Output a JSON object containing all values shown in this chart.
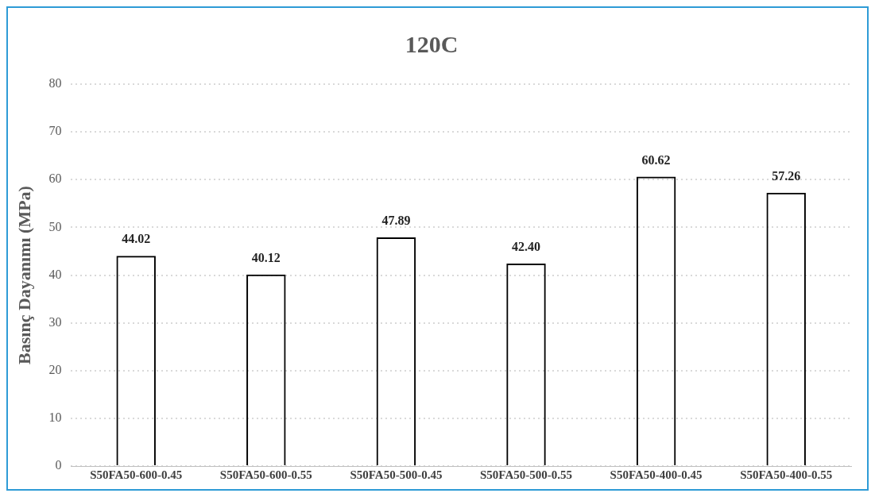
{
  "chart_data": {
    "type": "bar",
    "title": "120C",
    "ylabel": "Basınç Dayanımı (MPa)",
    "categories": [
      "S50FA50-600-0.45",
      "S50FA50-600-0.55",
      "S50FA50-500-0.45",
      "S50FA50-500-0.55",
      "S50FA50-400-0.45",
      "S50FA50-400-0.55"
    ],
    "values": [
      44.02,
      40.12,
      47.89,
      42.4,
      60.62,
      57.26
    ],
    "value_labels": [
      "44.02",
      "40.12",
      "47.89",
      "42.40",
      "60.62",
      "57.26"
    ],
    "color": "#000000",
    "ylim": [
      0,
      80
    ],
    "yticks": [
      0,
      10,
      20,
      30,
      40,
      50,
      60,
      70,
      80
    ],
    "grid": "y",
    "legend": false
  }
}
